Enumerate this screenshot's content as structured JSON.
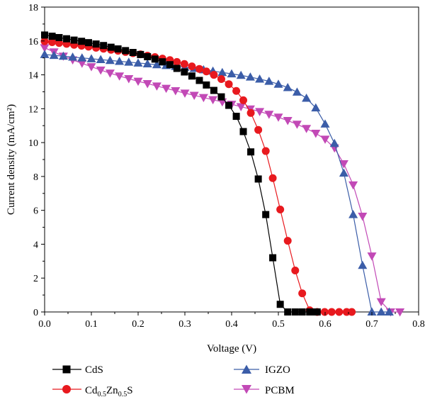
{
  "chart_data": {
    "type": "line",
    "xlabel": "Voltage (V)",
    "ylabel": "Current density (mA/cm²)",
    "xlim": [
      0.0,
      0.8
    ],
    "ylim": [
      0,
      18
    ],
    "xticks": [
      "0.0",
      "0.1",
      "0.2",
      "0.3",
      "0.4",
      "0.5",
      "0.6",
      "0.7",
      "0.8"
    ],
    "yticks": [
      "0",
      "2",
      "4",
      "6",
      "8",
      "10",
      "12",
      "14",
      "16",
      "18"
    ],
    "grid": false,
    "legend_position": "bottom",
    "series": [
      {
        "name": "CdS",
        "color": "#000000",
        "marker": "square",
        "x": [
          0.0,
          0.016,
          0.031,
          0.047,
          0.063,
          0.079,
          0.094,
          0.11,
          0.126,
          0.142,
          0.157,
          0.173,
          0.189,
          0.205,
          0.22,
          0.236,
          0.252,
          0.268,
          0.283,
          0.299,
          0.315,
          0.331,
          0.346,
          0.362,
          0.378,
          0.394,
          0.41,
          0.425,
          0.441,
          0.457,
          0.473,
          0.488,
          0.504,
          0.52,
          0.536,
          0.551,
          0.567,
          0.577,
          0.583
        ],
        "y": [
          16.35,
          16.28,
          16.2,
          16.13,
          16.05,
          15.98,
          15.9,
          15.82,
          15.73,
          15.63,
          15.53,
          15.43,
          15.32,
          15.2,
          15.07,
          14.93,
          14.77,
          14.6,
          14.38,
          14.17,
          13.93,
          13.67,
          13.4,
          13.08,
          12.7,
          12.2,
          11.55,
          10.65,
          9.45,
          7.85,
          5.75,
          3.2,
          0.45,
          0.0,
          0.0,
          0.0,
          0.0,
          0.0,
          0.0
        ]
      },
      {
        "name": "Cd0.5Zn0.5S",
        "color": "#e8191e",
        "marker": "circle",
        "x": [
          0.0,
          0.016,
          0.031,
          0.047,
          0.063,
          0.079,
          0.094,
          0.11,
          0.126,
          0.142,
          0.157,
          0.173,
          0.189,
          0.205,
          0.22,
          0.236,
          0.252,
          0.268,
          0.283,
          0.299,
          0.315,
          0.331,
          0.346,
          0.362,
          0.378,
          0.394,
          0.41,
          0.425,
          0.441,
          0.457,
          0.473,
          0.488,
          0.504,
          0.52,
          0.536,
          0.551,
          0.567,
          0.583,
          0.599,
          0.614,
          0.63,
          0.646,
          0.657
        ],
        "y": [
          15.98,
          15.93,
          15.88,
          15.83,
          15.77,
          15.72,
          15.66,
          15.6,
          15.54,
          15.48,
          15.42,
          15.35,
          15.28,
          15.21,
          15.13,
          15.05,
          14.96,
          14.87,
          14.76,
          14.64,
          14.5,
          14.35,
          14.2,
          14.0,
          13.75,
          13.45,
          13.05,
          12.5,
          11.75,
          10.75,
          9.5,
          7.9,
          6.05,
          4.2,
          2.45,
          1.1,
          0.1,
          0.0,
          0.0,
          0.0,
          0.0,
          0.0,
          0.0
        ]
      },
      {
        "name": "IGZO",
        "color": "#3b5da8",
        "marker": "triangle-up",
        "x": [
          0.0,
          0.02,
          0.04,
          0.06,
          0.08,
          0.1,
          0.12,
          0.14,
          0.16,
          0.18,
          0.2,
          0.22,
          0.24,
          0.26,
          0.28,
          0.3,
          0.32,
          0.34,
          0.36,
          0.38,
          0.4,
          0.42,
          0.44,
          0.46,
          0.48,
          0.5,
          0.52,
          0.54,
          0.56,
          0.58,
          0.6,
          0.62,
          0.64,
          0.66,
          0.68,
          0.7,
          0.72,
          0.737
        ],
        "y": [
          15.2,
          15.15,
          15.1,
          15.05,
          15.0,
          14.95,
          14.9,
          14.85,
          14.8,
          14.75,
          14.7,
          14.65,
          14.6,
          14.55,
          14.5,
          14.45,
          14.38,
          14.3,
          14.22,
          14.14,
          14.06,
          13.97,
          13.87,
          13.75,
          13.62,
          13.45,
          13.25,
          12.98,
          12.62,
          12.05,
          11.1,
          9.95,
          8.2,
          5.75,
          2.75,
          0.0,
          0.0,
          0.0
        ]
      },
      {
        "name": "PCBM",
        "color": "#c249b6",
        "marker": "triangle-down",
        "x": [
          0.0,
          0.02,
          0.04,
          0.06,
          0.08,
          0.1,
          0.12,
          0.14,
          0.16,
          0.18,
          0.2,
          0.22,
          0.24,
          0.26,
          0.28,
          0.3,
          0.32,
          0.34,
          0.36,
          0.38,
          0.4,
          0.42,
          0.44,
          0.46,
          0.48,
          0.5,
          0.52,
          0.54,
          0.56,
          0.58,
          0.6,
          0.62,
          0.64,
          0.66,
          0.68,
          0.7,
          0.72,
          0.74,
          0.76
        ],
        "y": [
          15.6,
          15.35,
          15.1,
          14.88,
          14.68,
          14.48,
          14.28,
          14.1,
          13.93,
          13.77,
          13.62,
          13.48,
          13.34,
          13.2,
          13.06,
          12.92,
          12.79,
          12.66,
          12.53,
          12.4,
          12.26,
          12.12,
          11.98,
          11.83,
          11.67,
          11.5,
          11.3,
          11.08,
          10.83,
          10.55,
          10.2,
          9.68,
          8.75,
          7.5,
          5.65,
          3.3,
          0.6,
          0.0,
          0.0
        ]
      }
    ]
  },
  "legend": {
    "items": [
      {
        "label": "CdS",
        "color": "#000000",
        "marker": "square"
      },
      {
        "label": "IGZO",
        "color": "#3b5da8",
        "marker": "triangle-up"
      },
      {
        "label_main": "Cd",
        "sub1": "0.5",
        "label_mid": "Zn",
        "sub2": "0.5",
        "label_end": "S",
        "color": "#e8191e",
        "marker": "circle"
      },
      {
        "label": "PCBM",
        "color": "#c249b6",
        "marker": "triangle-down"
      }
    ]
  }
}
